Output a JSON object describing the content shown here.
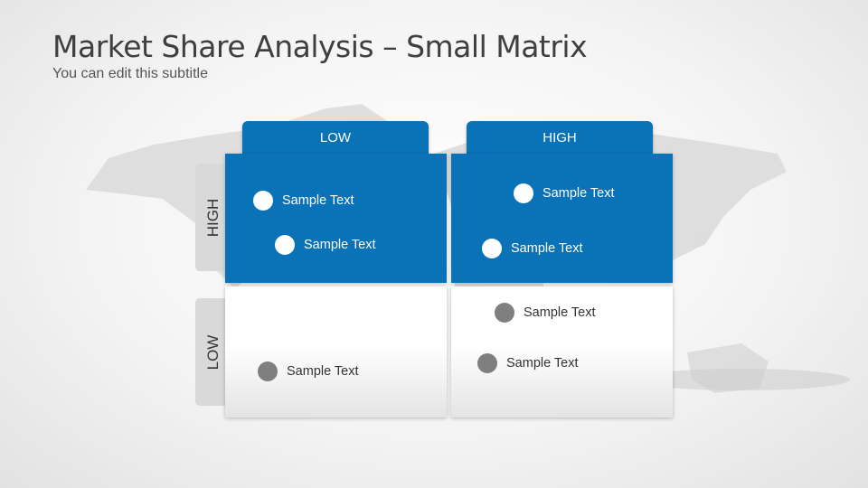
{
  "title": "Market Share Analysis – Small Matrix",
  "subtitle": "You can edit this subtitle",
  "columns": [
    "LOW",
    "HIGH"
  ],
  "rows": [
    "HIGH",
    "LOW"
  ],
  "colors": {
    "accent": "#0a73b7",
    "dot_light": "#ffffff",
    "dot_dark": "#7f7f7f"
  },
  "cells": {
    "high_low": [
      "Sample Text",
      "Sample Text"
    ],
    "high_high": [
      "Sample Text",
      "Sample Text"
    ],
    "low_low": [
      "Sample Text"
    ],
    "low_high": [
      "Sample Text",
      "Sample Text"
    ]
  }
}
